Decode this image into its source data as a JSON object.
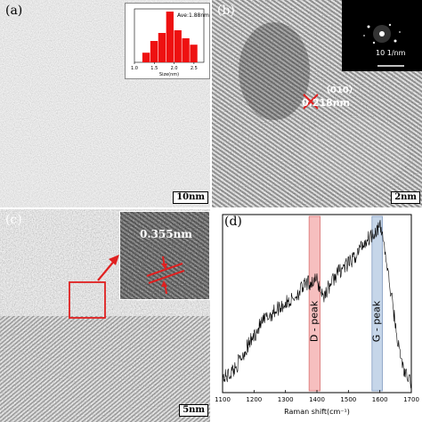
{
  "panels": {
    "a": {
      "label": "(a)",
      "scale_bar": "10nm",
      "histogram": {
        "annotation": "Ave:1.88nm",
        "xlabel": "Size(nm)",
        "ticks": [
          "1.0",
          "1.5",
          "2.0",
          "2.5"
        ]
      }
    },
    "b": {
      "label": "(b)",
      "plane": "（010）",
      "spacing": "0.218nm",
      "fft_scale": "10 1/nm",
      "scale_bar": "2nm"
    },
    "c": {
      "label": "(c)",
      "spacing": "0.355nm",
      "scale_bar": "5nm"
    },
    "d": {
      "label": "(d)"
    }
  },
  "colors": {
    "d_peak_band": "#f4b0b0",
    "g_peak_band": "#b8cce4",
    "annotation_red": "#e02020",
    "histogram_bar": "#ee1111"
  },
  "chart_data": [
    {
      "type": "bar",
      "title": "",
      "annotation": "Ave:1.88nm",
      "xlabel": "Size(nm)",
      "ylabel": "",
      "categories": [
        "1.3",
        "1.5",
        "1.7",
        "1.9",
        "2.1",
        "2.3",
        "2.5"
      ],
      "values": [
        0.18,
        0.4,
        0.55,
        0.95,
        0.6,
        0.45,
        0.33
      ],
      "xlim": [
        1.0,
        2.75
      ]
    },
    {
      "type": "line",
      "title": "",
      "xlabel": "Raman shift(cm⁻¹)",
      "ylabel": "",
      "xlim": [
        1100,
        1700
      ],
      "xticks": [
        "1100",
        "1200",
        "1300",
        "1400",
        "1500",
        "1600",
        "1700"
      ],
      "bands": [
        {
          "name": "D - peak",
          "range": [
            1375,
            1410
          ]
        },
        {
          "name": "G - peak",
          "range": [
            1575,
            1608
          ]
        }
      ],
      "series": [
        {
          "x": [
            1100,
            1120,
            1140,
            1160,
            1180,
            1200,
            1220,
            1240,
            1260,
            1280,
            1300,
            1320,
            1340,
            1360,
            1380,
            1400,
            1420,
            1440,
            1460,
            1480,
            1500,
            1520,
            1540,
            1560,
            1580,
            1600,
            1610,
            1620,
            1640,
            1660,
            1680,
            1700
          ],
          "y": [
            0.08,
            0.1,
            0.14,
            0.2,
            0.26,
            0.32,
            0.38,
            0.42,
            0.45,
            0.48,
            0.5,
            0.52,
            0.56,
            0.6,
            0.62,
            0.63,
            0.54,
            0.6,
            0.66,
            0.7,
            0.72,
            0.76,
            0.82,
            0.86,
            0.9,
            0.93,
            0.88,
            0.74,
            0.5,
            0.25,
            0.1,
            0.06
          ]
        }
      ]
    }
  ]
}
